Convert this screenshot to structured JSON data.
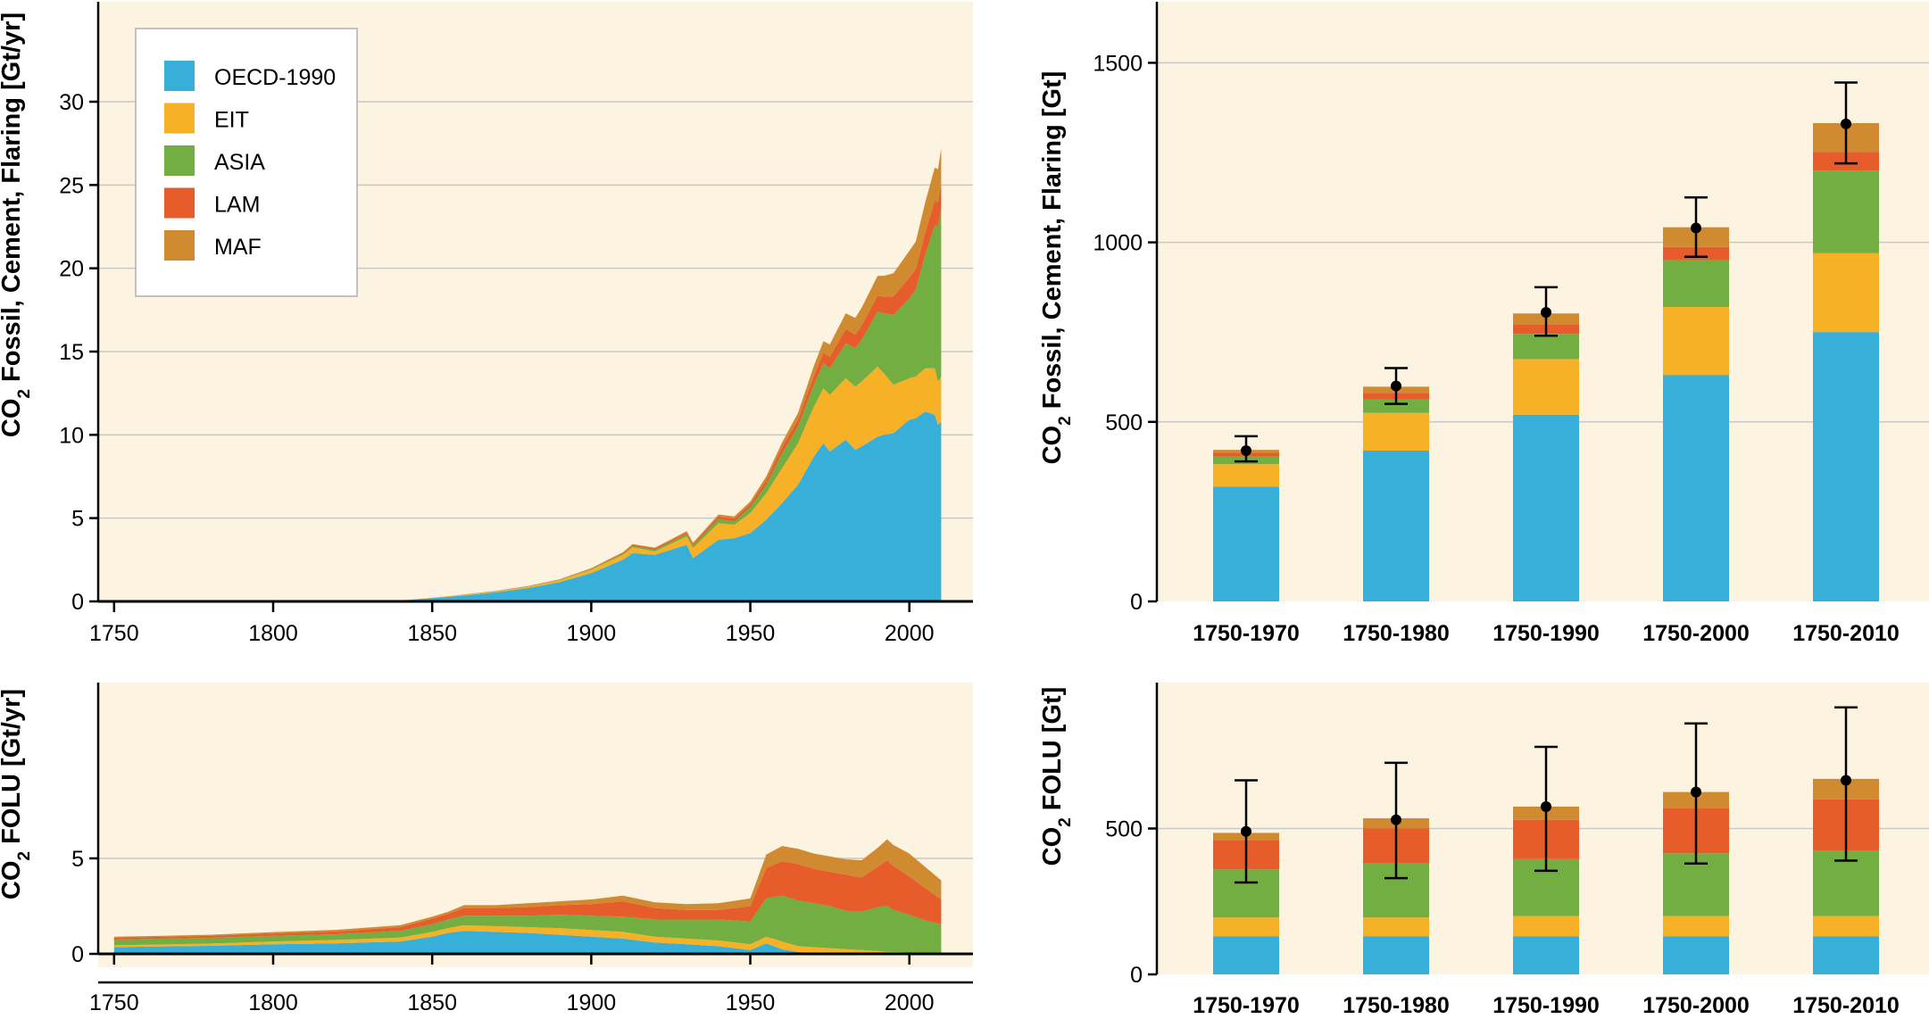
{
  "colors": {
    "panel_bg": "#fdf3e1",
    "grid": "#c8c8c8",
    "axis": "#000000",
    "OECD-1990": "#38afd8",
    "EIT": "#f7b126",
    "ASIA": "#73ae42",
    "LAM": "#e65c2b",
    "MAF": "#d08a30",
    "marker": "#000000"
  },
  "legend": {
    "placement": "top-left",
    "items": [
      "OECD-1990",
      "EIT",
      "ASIA",
      "LAM",
      "MAF"
    ]
  },
  "chart_data": [
    {
      "id": "fossil-annual",
      "type": "area",
      "stacked": true,
      "ylabel_prefix": "CO",
      "ylabel_sub": "2",
      "ylabel_text": " Fossil, Cement, Flaring [Gt/yr]",
      "xlim": [
        1745,
        2020
      ],
      "ylim": [
        0,
        36
      ],
      "xticks": [
        "1750",
        "1800",
        "1850",
        "1900",
        "1950",
        "2000"
      ],
      "yticks": [
        "0",
        "5",
        "10",
        "15",
        "20",
        "25",
        "30"
      ],
      "grid": true,
      "x": [
        1750,
        1800,
        1840,
        1850,
        1860,
        1870,
        1880,
        1890,
        1900,
        1910,
        1913,
        1920,
        1925,
        1930,
        1932,
        1940,
        1945,
        1950,
        1955,
        1960,
        1965,
        1970,
        1973,
        1975,
        1980,
        1983,
        1985,
        1990,
        1992,
        1995,
        2000,
        2002,
        2005,
        2008,
        2009,
        2010
      ],
      "series": [
        {
          "name": "OECD-1990",
          "values": [
            0,
            0,
            0.05,
            0.2,
            0.35,
            0.55,
            0.8,
            1.15,
            1.7,
            2.5,
            2.9,
            2.8,
            3.1,
            3.4,
            2.6,
            3.7,
            3.8,
            4.1,
            4.9,
            5.9,
            7.0,
            8.7,
            9.5,
            9.0,
            9.7,
            9.1,
            9.3,
            9.9,
            10.0,
            10.1,
            10.9,
            11.0,
            11.4,
            11.2,
            10.6,
            10.8
          ]
        },
        {
          "name": "EIT",
          "values": [
            0,
            0,
            0.01,
            0.02,
            0.04,
            0.06,
            0.08,
            0.12,
            0.2,
            0.3,
            0.35,
            0.2,
            0.35,
            0.5,
            0.6,
            1.0,
            0.8,
            1.2,
            1.6,
            2.1,
            2.5,
            3.0,
            3.3,
            3.4,
            3.7,
            3.8,
            3.9,
            4.2,
            3.7,
            2.9,
            2.5,
            2.5,
            2.6,
            2.8,
            2.6,
            2.7
          ]
        },
        {
          "name": "ASIA",
          "values": [
            0,
            0,
            0,
            0,
            0.01,
            0.01,
            0.02,
            0.03,
            0.05,
            0.08,
            0.09,
            0.1,
            0.12,
            0.15,
            0.15,
            0.25,
            0.2,
            0.35,
            0.5,
            0.9,
            1.0,
            1.3,
            1.5,
            1.6,
            2.1,
            2.3,
            2.5,
            3.3,
            3.6,
            4.2,
            4.8,
            5.2,
            6.8,
            8.6,
            9.3,
            10.1
          ]
        },
        {
          "name": "LAM",
          "values": [
            0,
            0,
            0,
            0,
            0.01,
            0.01,
            0.01,
            0.02,
            0.03,
            0.05,
            0.06,
            0.08,
            0.09,
            0.1,
            0.1,
            0.15,
            0.17,
            0.2,
            0.28,
            0.35,
            0.42,
            0.55,
            0.62,
            0.68,
            0.85,
            0.82,
            0.88,
            0.95,
            1.0,
            1.1,
            1.25,
            1.25,
            1.35,
            1.45,
            1.45,
            1.5
          ]
        },
        {
          "name": "MAF",
          "values": [
            0,
            0,
            0,
            0,
            0,
            0.01,
            0.01,
            0.01,
            0.02,
            0.03,
            0.04,
            0.05,
            0.06,
            0.07,
            0.07,
            0.12,
            0.13,
            0.15,
            0.22,
            0.3,
            0.4,
            0.6,
            0.7,
            0.75,
            0.95,
            1.0,
            1.05,
            1.2,
            1.25,
            1.4,
            1.6,
            1.65,
            1.8,
            2.0,
            2.0,
            2.1
          ]
        }
      ]
    },
    {
      "id": "fossil-cumulative",
      "type": "bar",
      "stacked": true,
      "ylabel_prefix": "CO",
      "ylabel_sub": "2",
      "ylabel_text": " Fossil, Cement, Flaring [Gt]",
      "categories": [
        "1750-1970",
        "1750-1980",
        "1750-1990",
        "1750-2000",
        "1750-2010"
      ],
      "ylim": [
        0,
        1670
      ],
      "yticks": [
        "0",
        "500",
        "1000",
        "1500"
      ],
      "grid": true,
      "series": [
        {
          "name": "OECD-1990",
          "values": [
            320,
            420,
            520,
            630,
            750
          ]
        },
        {
          "name": "EIT",
          "values": [
            62,
            105,
            155,
            190,
            220
          ]
        },
        {
          "name": "ASIA",
          "values": [
            22,
            38,
            70,
            130,
            230
          ]
        },
        {
          "name": "LAM",
          "values": [
            10,
            18,
            27,
            37,
            52
          ]
        },
        {
          "name": "MAF",
          "values": [
            8,
            17,
            30,
            55,
            80
          ]
        }
      ],
      "totals": [
        420,
        600,
        805,
        1040,
        1330
      ],
      "error_low": [
        390,
        550,
        740,
        960,
        1220
      ],
      "error_high": [
        460,
        650,
        875,
        1125,
        1445
      ]
    },
    {
      "id": "folu-annual",
      "type": "area",
      "stacked": true,
      "ylabel_prefix": "CO",
      "ylabel_sub": "2",
      "ylabel_text": " FOLU [Gt/yr]",
      "xlim": [
        1745,
        2020
      ],
      "ylim": [
        -0.7,
        14.2
      ],
      "xticks": [
        "1750",
        "1800",
        "1850",
        "1900",
        "1950",
        "2000"
      ],
      "yticks": [
        "0",
        "5"
      ],
      "grid": true,
      "x": [
        1750,
        1760,
        1780,
        1800,
        1820,
        1840,
        1850,
        1855,
        1860,
        1870,
        1880,
        1890,
        1900,
        1910,
        1920,
        1930,
        1940,
        1950,
        1955,
        1960,
        1965,
        1970,
        1975,
        1980,
        1985,
        1990,
        1993,
        1995,
        2000,
        2005,
        2010
      ],
      "series": [
        {
          "name": "OECD-1990",
          "values": [
            0.35,
            0.38,
            0.42,
            0.5,
            0.55,
            0.65,
            0.9,
            1.1,
            1.2,
            1.15,
            1.1,
            1.0,
            0.9,
            0.8,
            0.6,
            0.5,
            0.4,
            0.2,
            0.55,
            0.25,
            0.1,
            0.05,
            0,
            0,
            0,
            0,
            0,
            0,
            0,
            0,
            0
          ]
        },
        {
          "name": "EIT",
          "values": [
            0.1,
            0.1,
            0.12,
            0.15,
            0.18,
            0.2,
            0.25,
            0.25,
            0.3,
            0.3,
            0.3,
            0.35,
            0.35,
            0.35,
            0.3,
            0.3,
            0.3,
            0.3,
            0.35,
            0.4,
            0.3,
            0.3,
            0.3,
            0.25,
            0.2,
            0.15,
            0.1,
            0.1,
            0.05,
            0.05,
            0.05
          ]
        },
        {
          "name": "ASIA",
          "values": [
            0.3,
            0.3,
            0.3,
            0.3,
            0.3,
            0.35,
            0.4,
            0.45,
            0.5,
            0.55,
            0.6,
            0.7,
            0.75,
            0.8,
            0.9,
            1.0,
            1.1,
            1.2,
            2.0,
            2.4,
            2.4,
            2.3,
            2.2,
            2.0,
            2.0,
            2.3,
            2.4,
            2.2,
            2.0,
            1.7,
            1.5
          ]
        },
        {
          "name": "LAM",
          "values": [
            0.1,
            0.1,
            0.1,
            0.12,
            0.15,
            0.2,
            0.3,
            0.3,
            0.4,
            0.4,
            0.45,
            0.5,
            0.6,
            0.8,
            0.6,
            0.5,
            0.5,
            0.8,
            1.6,
            1.8,
            1.9,
            1.8,
            1.8,
            1.9,
            1.8,
            2.1,
            2.4,
            2.3,
            2.0,
            1.7,
            1.3
          ]
        },
        {
          "name": "MAF",
          "values": [
            0.05,
            0.05,
            0.06,
            0.07,
            0.08,
            0.1,
            0.1,
            0.1,
            0.15,
            0.15,
            0.2,
            0.2,
            0.25,
            0.3,
            0.3,
            0.3,
            0.35,
            0.4,
            0.7,
            0.8,
            0.8,
            0.8,
            0.8,
            0.8,
            0.9,
            1.0,
            1.1,
            1.1,
            1.2,
            1.1,
            1.0
          ]
        }
      ]
    },
    {
      "id": "folu-cumulative",
      "type": "bar",
      "stacked": true,
      "ylabel_prefix": "CO",
      "ylabel_sub": "2",
      "ylabel_text": " FOLU [Gt]",
      "categories": [
        "1750-1970",
        "1750-1980",
        "1750-1990",
        "1750-2000",
        "1750-2010"
      ],
      "ylim": [
        0,
        1000
      ],
      "yticks": [
        "0",
        "500"
      ],
      "grid": true,
      "series": [
        {
          "name": "OECD-1990",
          "values": [
            130,
            130,
            130,
            130,
            130
          ]
        },
        {
          "name": "EIT",
          "values": [
            65,
            65,
            70,
            70,
            70
          ]
        },
        {
          "name": "ASIA",
          "values": [
            165,
            185,
            195,
            215,
            225
          ]
        },
        {
          "name": "LAM",
          "values": [
            100,
            120,
            135,
            155,
            175
          ]
        },
        {
          "name": "MAF",
          "values": [
            25,
            35,
            45,
            55,
            70
          ]
        }
      ],
      "totals": [
        490,
        530,
        575,
        625,
        665
      ],
      "error_low": [
        315,
        330,
        355,
        380,
        390
      ],
      "error_high": [
        665,
        725,
        780,
        860,
        915
      ]
    }
  ]
}
